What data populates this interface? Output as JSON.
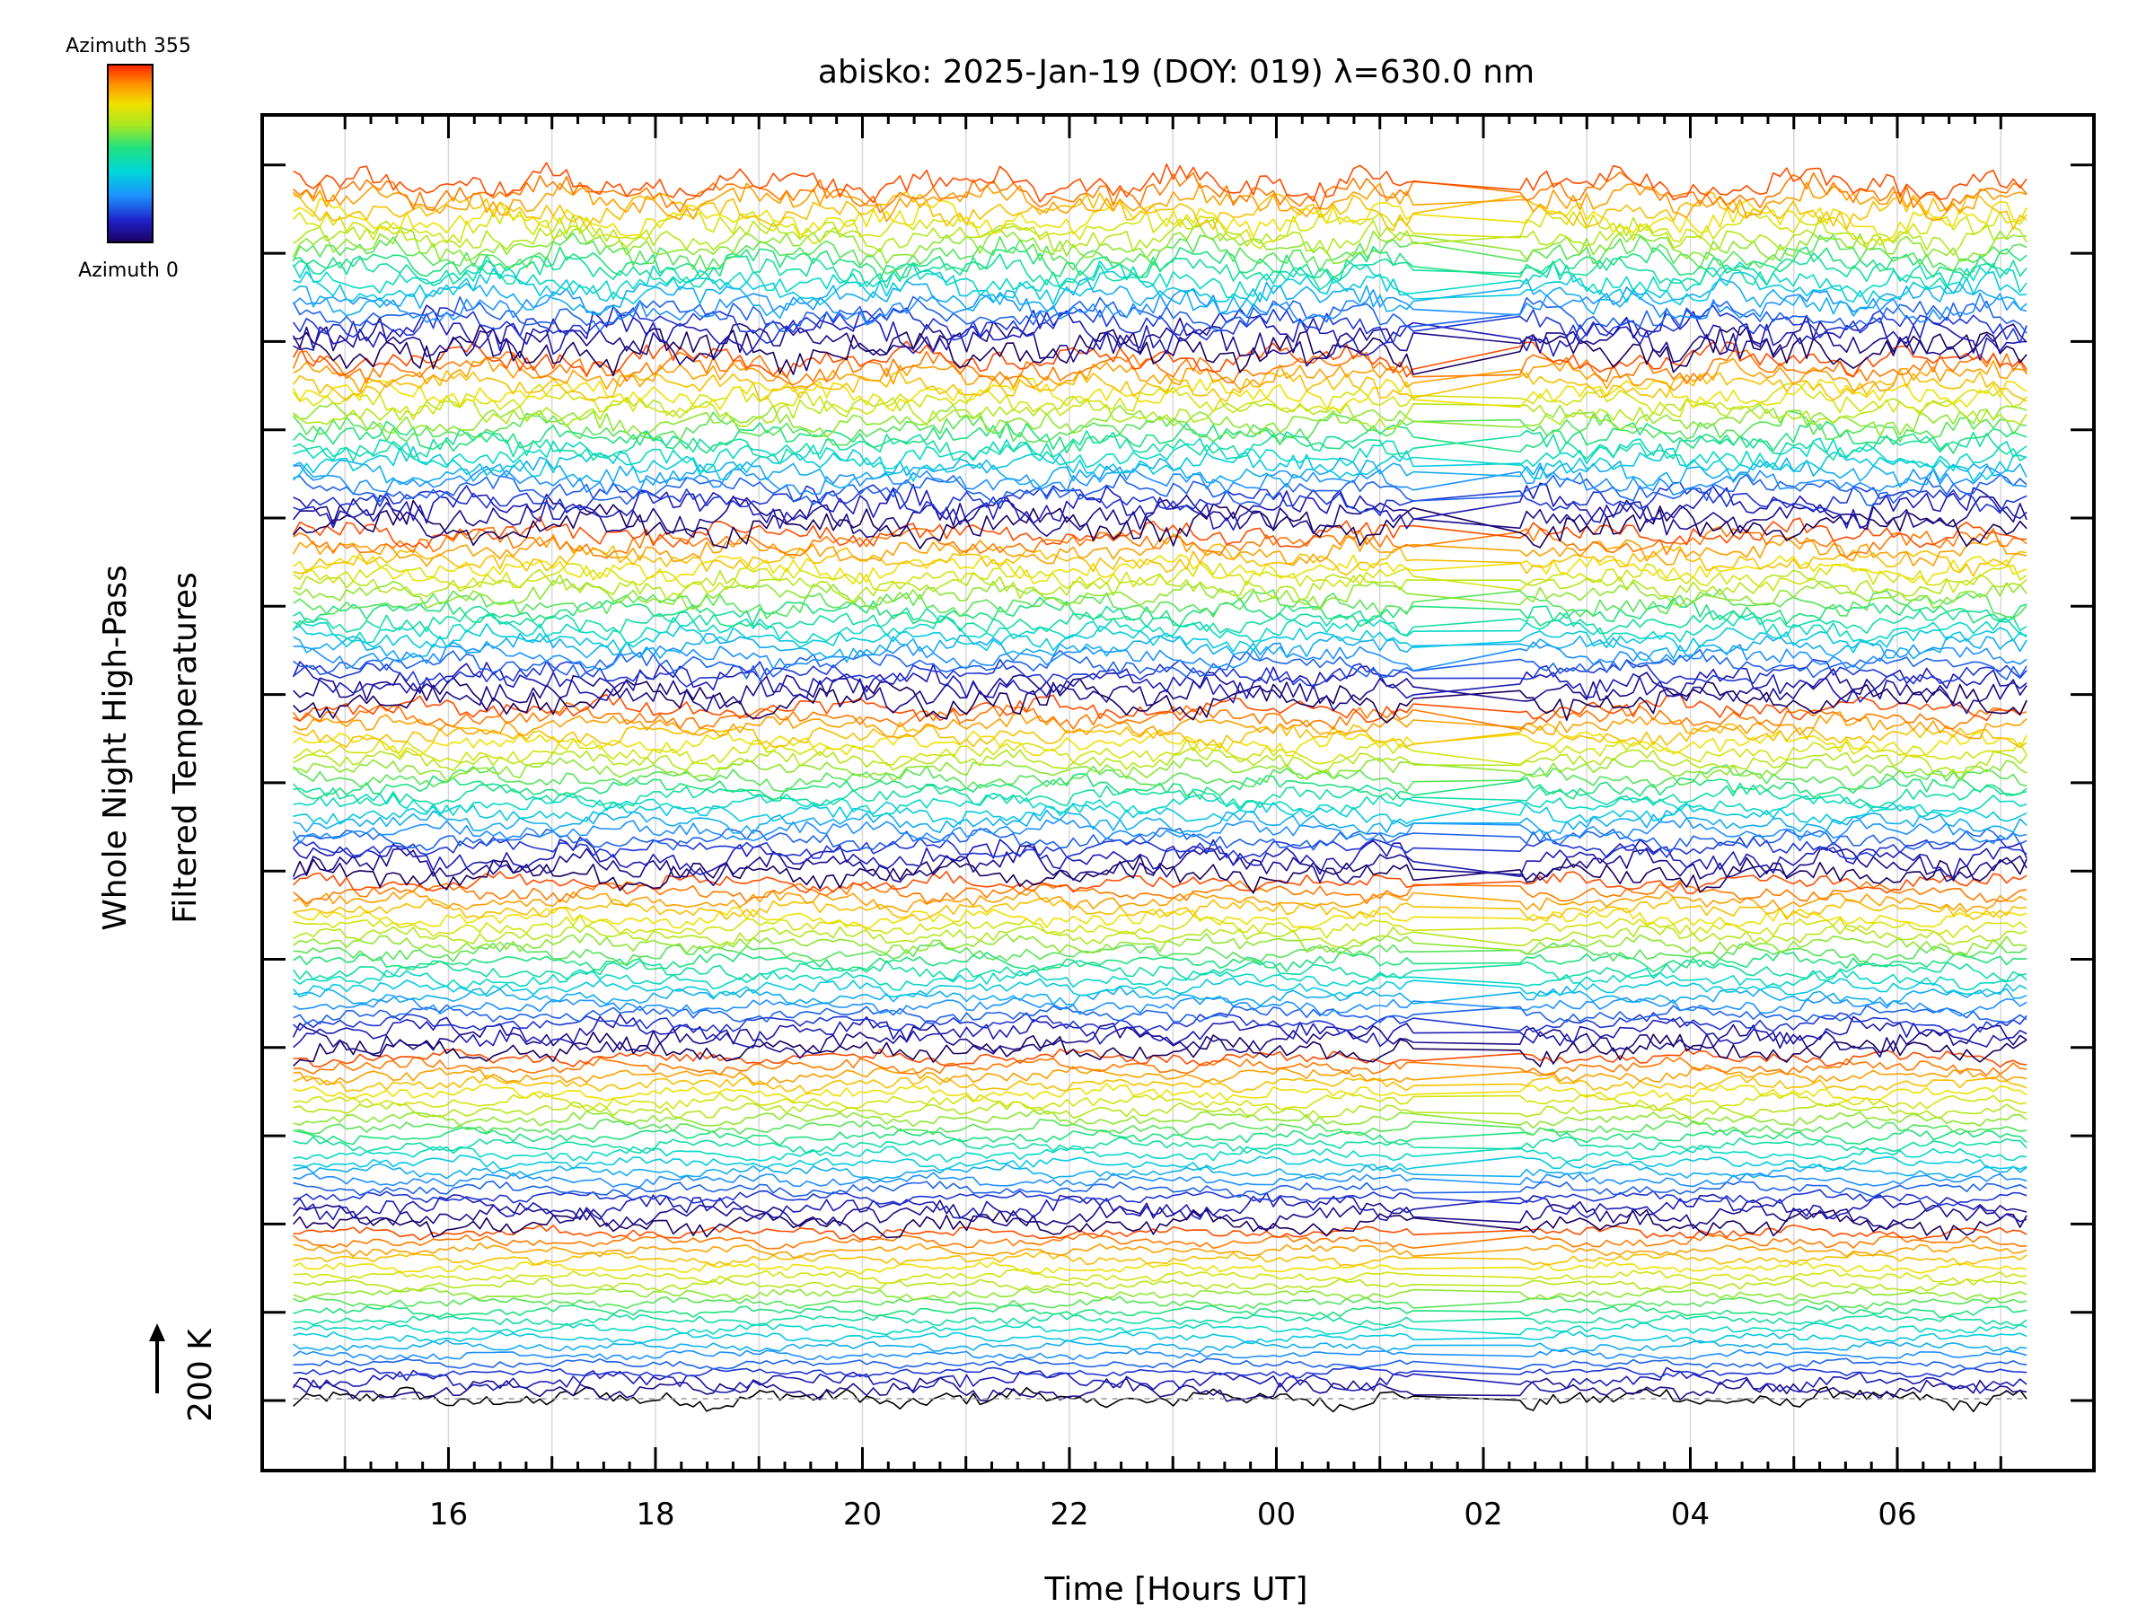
{
  "chart_data": {
    "type": "line",
    "title": "abisko: 2025-Jan-19 (DOY: 019) λ=630.0 nm",
    "xlabel": "Time [Hours UT]",
    "ylabel_line1": "Whole Night High-Pass",
    "ylabel_line2": "Filtered Temperatures",
    "scale_label": "200 K",
    "x_range_hours": [
      14.2,
      31.9
    ],
    "data_time_range_hours": [
      14.5,
      31.25
    ],
    "x_ticks": [
      {
        "hour": 16,
        "label": "16"
      },
      {
        "hour": 18,
        "label": "18"
      },
      {
        "hour": 20,
        "label": "20"
      },
      {
        "hour": 22,
        "label": "22"
      },
      {
        "hour": 24,
        "label": "00"
      },
      {
        "hour": 26,
        "label": "02"
      },
      {
        "hour": 28,
        "label": "04"
      },
      {
        "hour": 30,
        "label": "06"
      }
    ],
    "data_gap_hours": [
      25.35,
      26.3
    ],
    "grid": "vertical dotted lines every hour",
    "num_traces": 140,
    "traces_per_band": 20,
    "num_bands": 7,
    "colorbar": {
      "label_top": "Azimuth 355",
      "label_bottom": "Azimuth 0",
      "colormap": "rainbow (dark blue to red)",
      "azimuth_range": [
        0,
        355
      ],
      "colors": [
        "#1a0060",
        "#2020c8",
        "#1e90ff",
        "#00d8d8",
        "#20e080",
        "#a8e820",
        "#f0e000",
        "#ff9000",
        "#ff2000"
      ]
    }
  }
}
